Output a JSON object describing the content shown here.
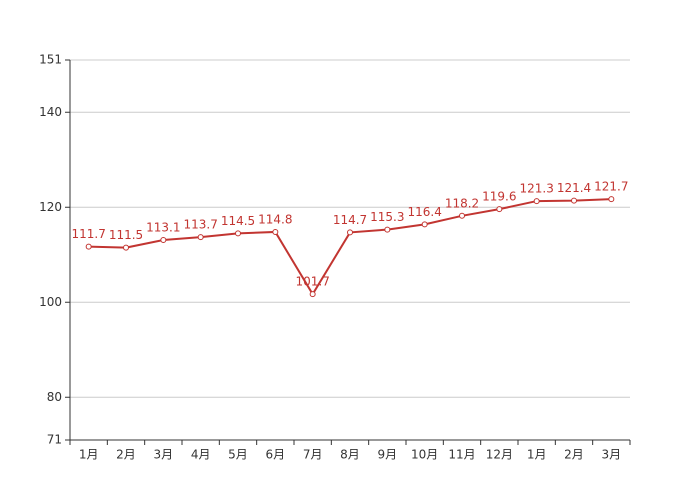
{
  "chart_data": {
    "type": "line",
    "categories": [
      "1月",
      "2月",
      "3月",
      "4月",
      "5月",
      "6月",
      "7月",
      "8月",
      "9月",
      "10月",
      "11月",
      "12月",
      "1月",
      "2月",
      "3月"
    ],
    "series": [
      {
        "color": "#c23531",
        "values": [
          111.7,
          111.5,
          113.1,
          113.7,
          114.5,
          114.8,
          101.7,
          114.7,
          115.3,
          116.4,
          118.2,
          119.6,
          121.3,
          121.4,
          121.7
        ]
      }
    ],
    "ylim": [
      71,
      151
    ],
    "yticks": [
      71,
      80,
      100,
      120,
      140,
      151
    ],
    "grid": true
  }
}
